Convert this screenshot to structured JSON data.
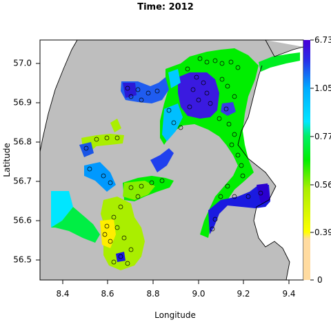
{
  "title": "Time: 2012",
  "xlabel": "Longitude",
  "ylabel": "Latitude",
  "x_ticks": [
    "8.4",
    "8.6",
    "8.8",
    "9.0",
    "9.2",
    "9.4"
  ],
  "y_ticks": [
    "57.0",
    "56.9",
    "56.8",
    "56.7",
    "56.6",
    "56.5"
  ],
  "colorbar_ticks": [
    "6.73",
    "1.05",
    "0.77",
    "0.56",
    "0.39",
    "0"
  ],
  "colors": {
    "land": "#bebebe",
    "sea_background": "#ffffff",
    "high": "#1a00e6",
    "mid_high": "#00aaff",
    "mid": "#00ee00",
    "mid_low": "#aaee00",
    "low": "#ffee00",
    "lowest": "#ffdba0"
  },
  "chart_data": {
    "type": "heatmap",
    "title": "Time: 2012",
    "xlabel": "Longitude",
    "ylabel": "Latitude",
    "xlim": [
      8.3,
      9.5
    ],
    "ylim": [
      56.44,
      57.06
    ],
    "x_ticks": [
      8.4,
      8.6,
      8.8,
      9.0,
      9.2,
      9.4
    ],
    "y_ticks": [
      56.5,
      56.6,
      56.7,
      56.8,
      56.9,
      57.0
    ],
    "colorbar": {
      "ticks": [
        0,
        0.39,
        0.56,
        0.77,
        1.05,
        6.73
      ],
      "colors": [
        "#ffdba0",
        "#ffee00",
        "#aaee00",
        "#00ee00",
        "#00ddff",
        "#1a00e6"
      ]
    },
    "regions": [
      {
        "name_hint": "",
        "level": 0.56,
        "color": "#aaee00"
      }
    ]
  }
}
